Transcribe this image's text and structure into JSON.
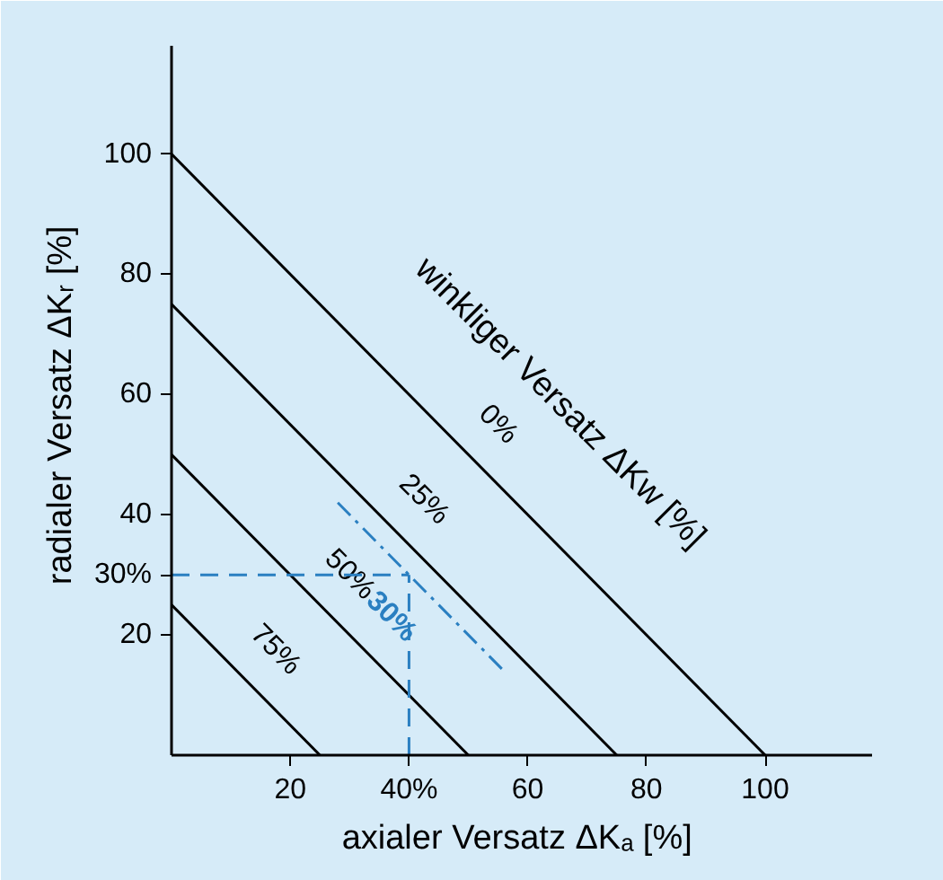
{
  "chart_data": {
    "type": "line",
    "xlabel": "axialer Versatz  ΔKₐ [%]",
    "ylabel": "radialer Versatz  ΔKᵣ [%]",
    "xlim": [
      0,
      118
    ],
    "ylim": [
      0,
      118
    ],
    "xticks": [
      20,
      {
        "value": 40,
        "label": "40%"
      },
      60,
      80,
      100
    ],
    "yticks": [
      20,
      {
        "value": 30,
        "label": "30%"
      },
      40,
      60,
      80,
      100
    ],
    "grid": false,
    "marker": "none",
    "annotations": [
      "winkliger Versatz  ΔKw [%]"
    ],
    "series": [
      {
        "name": "0%",
        "color": "#000000",
        "x": [
          0,
          100
        ],
        "values": [
          100,
          0
        ],
        "line_style": "solid"
      },
      {
        "name": "25%",
        "color": "#000000",
        "x": [
          0,
          75
        ],
        "values": [
          75,
          0
        ],
        "line_style": "solid"
      },
      {
        "name": "50%",
        "color": "#000000",
        "x": [
          0,
          50
        ],
        "values": [
          50,
          0
        ],
        "line_style": "solid"
      },
      {
        "name": "75%",
        "color": "#000000",
        "x": [
          0,
          25
        ],
        "values": [
          25,
          0
        ],
        "line_style": "solid"
      },
      {
        "name": "30%",
        "color": "#2a7fc1",
        "x": [
          28,
          56
        ],
        "values": [
          42,
          14
        ],
        "line_style": "dashdot"
      },
      {
        "color": "#2a7fc1",
        "x": [
          0,
          40
        ],
        "values": [
          30,
          30
        ],
        "line_style": "dashed"
      },
      {
        "color": "#2a7fc1",
        "x": [
          40,
          40
        ],
        "values": [
          0,
          30
        ],
        "line_style": "dashed"
      }
    ]
  }
}
